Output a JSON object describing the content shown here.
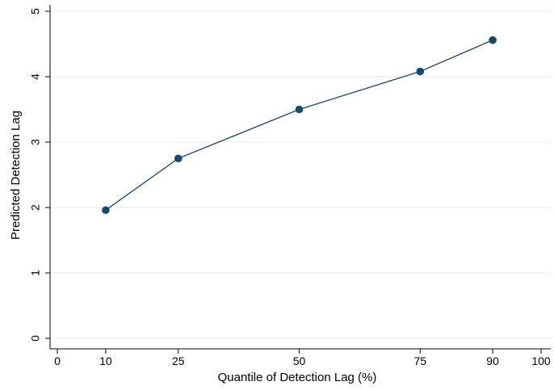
{
  "chart_data": {
    "type": "line",
    "title": "",
    "xlabel": "Quantile of Detection Lag (%)",
    "ylabel": "Predicted Detection Lag",
    "xlim": [
      0,
      100
    ],
    "ylim": [
      0,
      5
    ],
    "xticks": [
      0,
      10,
      25,
      50,
      75,
      90,
      100
    ],
    "yticks": [
      0,
      1,
      2,
      3,
      4,
      5
    ],
    "grid": true,
    "legend": "none",
    "series": [
      {
        "x": [
          10,
          25,
          50,
          75,
          90
        ],
        "y": [
          1.96,
          2.75,
          3.5,
          4.08,
          4.56
        ],
        "color": "#1a476f"
      }
    ]
  }
}
